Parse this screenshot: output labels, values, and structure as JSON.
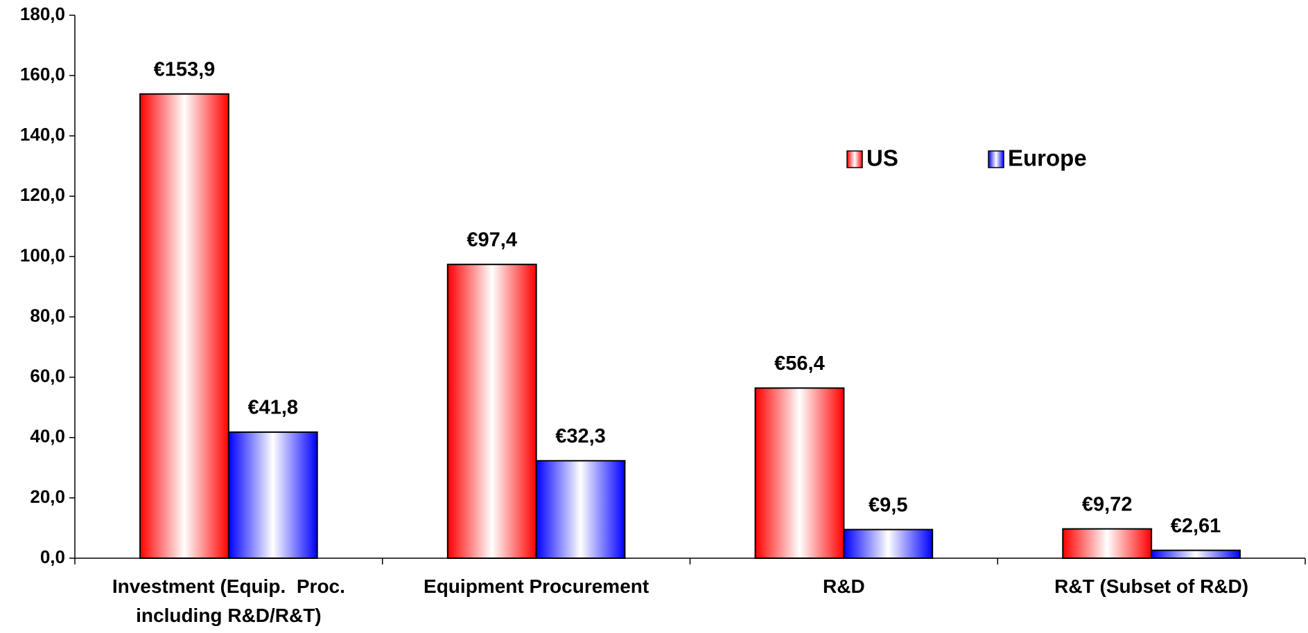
{
  "chart_data": {
    "type": "bar",
    "categories": [
      "Investment (Equip.  Proc. including R&D/R&T)",
      "Equipment Procurement",
      "R&D",
      "R&T (Subset of R&D)"
    ],
    "series": [
      {
        "name": "US",
        "color": "#ff0000",
        "values": [
          153.9,
          97.4,
          56.4,
          9.72
        ],
        "value_labels": [
          "€153,9",
          "€97,4",
          "€56,4",
          "€9,72"
        ]
      },
      {
        "name": "Europe",
        "color": "#0000ff",
        "values": [
          41.8,
          32.3,
          9.5,
          2.61
        ],
        "value_labels": [
          "€41,8",
          "€32,3",
          "€9,5",
          "€2,61"
        ]
      }
    ],
    "ylim": [
      0,
      180
    ],
    "yticks": [
      {
        "value": 0,
        "label": "0,0"
      },
      {
        "value": 20,
        "label": "20,0"
      },
      {
        "value": 40,
        "label": "40,0"
      },
      {
        "value": 60,
        "label": "60,0"
      },
      {
        "value": 80,
        "label": "80,0"
      },
      {
        "value": 100,
        "label": "100,0"
      },
      {
        "value": 120,
        "label": "120,0"
      },
      {
        "value": 140,
        "label": "140,0"
      },
      {
        "value": 160,
        "label": "160,0"
      },
      {
        "value": 180,
        "label": "180,0"
      }
    ],
    "grid": false,
    "legend": "top-right"
  }
}
